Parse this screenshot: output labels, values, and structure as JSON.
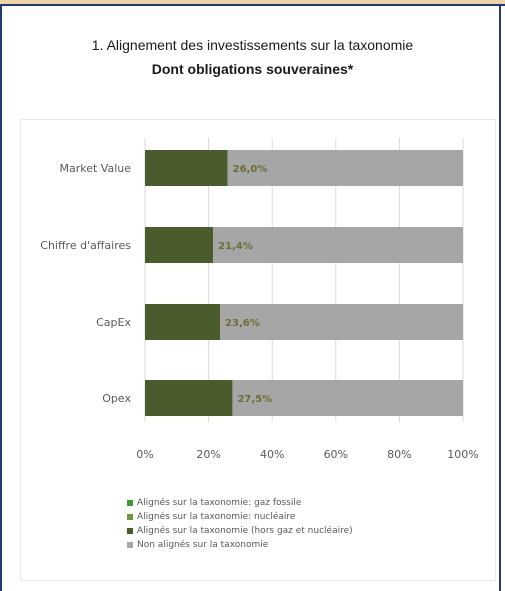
{
  "header": {
    "title": "1. Alignement des investissements sur la taxonomie",
    "subtitle": "Dont obligations souveraines*"
  },
  "chart_data": {
    "type": "bar",
    "orientation": "horizontal",
    "stacked": true,
    "categories": [
      "Market Value",
      "Chiffre d'affaires",
      "CapEx",
      "Opex"
    ],
    "series": [
      {
        "name": "Alignés sur la taxonomie (hors gaz et nucléaire)",
        "color": "#4a5b2c",
        "values": [
          26.0,
          21.4,
          23.6,
          27.5
        ]
      },
      {
        "name": "Non alignés sur la taxonomie",
        "color": "#a6a6a6",
        "values": [
          74.0,
          78.6,
          76.4,
          72.5
        ]
      }
    ],
    "data_labels": [
      "26,0%",
      "21,4%",
      "23,6%",
      "27,5%"
    ],
    "xlim": [
      0,
      100
    ],
    "xticks": [
      "0%",
      "20%",
      "40%",
      "60%",
      "80%",
      "100%"
    ],
    "legend": {
      "position": "bottom",
      "items": [
        {
          "label": "Alignés sur la taxonomie: gaz fossile",
          "color": "#3d9a34"
        },
        {
          "label": "Alignés sur la taxonomie: nucléaire",
          "color": "#6a9a3a"
        },
        {
          "label": "Alignés sur la taxonomie (hors gaz et nucléaire)",
          "color": "#4a5b2c"
        },
        {
          "label": "Non alignés sur la taxonomie",
          "color": "#a6a6a6"
        }
      ]
    },
    "grid": true
  }
}
